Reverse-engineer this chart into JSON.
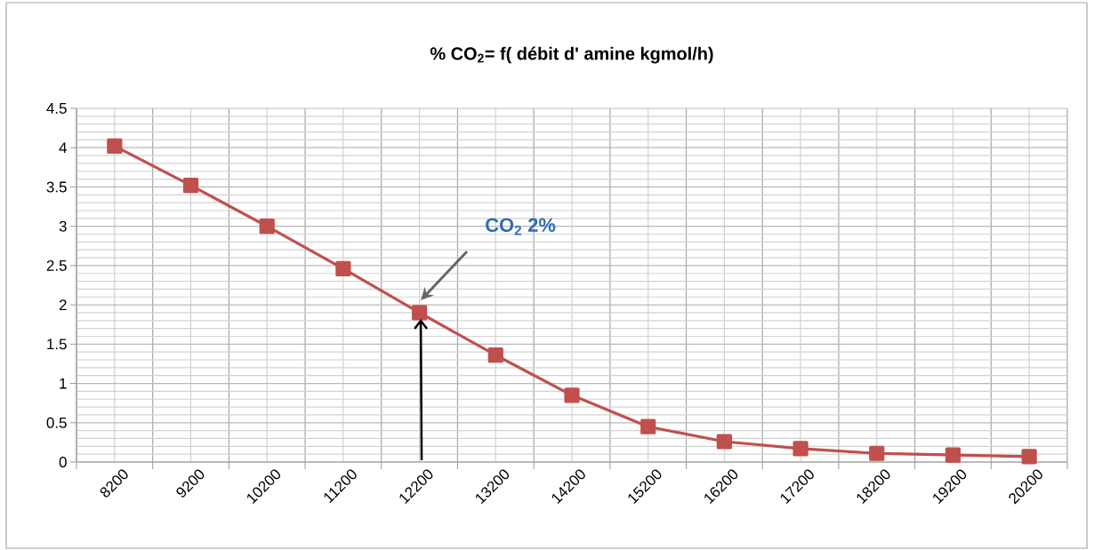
{
  "chart_data": {
    "type": "line",
    "title": "% CO$_{2}$= f( débit d' amine  kgmol/h)",
    "categories": [
      "8200",
      "9200",
      "10200",
      "11200",
      "12200",
      "13200",
      "14200",
      "15200",
      "16200",
      "17200",
      "18200",
      "19200",
      "20200"
    ],
    "series": [
      {
        "color": "#c0504d",
        "values": [
          4.02,
          3.52,
          3.0,
          2.46,
          1.9,
          1.36,
          0.85,
          0.45,
          0.26,
          0.17,
          0.11,
          0.09,
          0.07
        ]
      }
    ],
    "ylim": [
      0,
      4.5
    ],
    "yticks": [
      0,
      0.5,
      1,
      1.5,
      2,
      2.5,
      3,
      3.5,
      4,
      4.5
    ],
    "grid": true,
    "marker": "square",
    "line_style": "solid",
    "annotations": [
      "CO$_{2}$ 2%"
    ]
  }
}
